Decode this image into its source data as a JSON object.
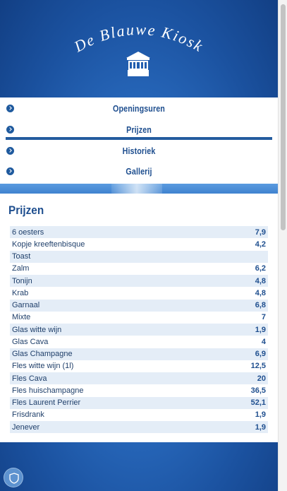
{
  "header": {
    "site_title": "De Blauwe Kiosk",
    "logo_icon": "kiosk-icon"
  },
  "nav": {
    "items": [
      {
        "label": "Openingsuren",
        "icon": "chevron-right-icon",
        "active": false
      },
      {
        "label": "Prijzen",
        "icon": "chevron-right-icon",
        "active": true
      },
      {
        "label": "Historiek",
        "icon": "chevron-right-icon",
        "active": false
      },
      {
        "label": "Gallerij",
        "icon": "chevron-right-icon",
        "active": false
      }
    ]
  },
  "main": {
    "section_title": "Prijzen",
    "prices": [
      {
        "item": "6 oesters",
        "price": "7,9"
      },
      {
        "item": "Kopje kreeftenbisque",
        "price": "4,2"
      },
      {
        "item": "Toast",
        "price": ""
      },
      {
        "item": "Zalm",
        "price": "6,2"
      },
      {
        "item": "Tonijn",
        "price": "4,8"
      },
      {
        "item": "Krab",
        "price": "4,8"
      },
      {
        "item": "Garnaal",
        "price": "6,8"
      },
      {
        "item": "Mixte",
        "price": "7"
      },
      {
        "item": "Glas witte wijn",
        "price": "1,9"
      },
      {
        "item": "Glas Cava",
        "price": "4"
      },
      {
        "item": "Glas Champagne",
        "price": "6,9"
      },
      {
        "item": "Fles witte wijn (1l)",
        "price": "12,5"
      },
      {
        "item": "Fles Cava",
        "price": "20"
      },
      {
        "item": "Fles huischampagne",
        "price": "36,5"
      },
      {
        "item": "Fles Laurent Perrier",
        "price": "52,1"
      },
      {
        "item": "Frisdrank",
        "price": "1,9"
      },
      {
        "item": "Jenever",
        "price": "1,9"
      }
    ]
  },
  "colors": {
    "brand_blue": "#1f4f8f",
    "row_alt": "#e4edf7",
    "background_blue": "#2a6cc0"
  }
}
